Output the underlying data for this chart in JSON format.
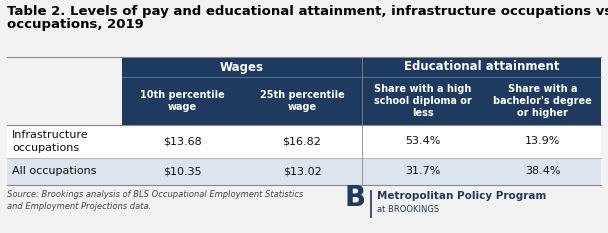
{
  "title_line1": "Table 2. Levels of pay and educational attainment, infrastructure occupations vs. all",
  "title_line2": "occupations, 2019",
  "title_fontsize": 9.5,
  "bg_color": "#f2f2f2",
  "header_bg": "#1e3a5f",
  "header_text_color": "#ffffff",
  "subheader_divider_color": "#4a6fa5",
  "row1_bg": "#ffffff",
  "row2_bg": "#dce4f0",
  "data_text_color": "#111111",
  "line_color": "#999999",
  "col_headers": [
    "10th percentile\nwage",
    "25th percentile\nwage",
    "Share with a high\nschool diploma or\nless",
    "Share with a\nbachelor's degree\nor higher"
  ],
  "group_labels": [
    "Wages",
    "Educational attainment"
  ],
  "row_labels": [
    "Infrastructure\noccupations",
    "All occupations"
  ],
  "data": [
    [
      "$13.68",
      "$16.82",
      "53.4%",
      "13.9%"
    ],
    [
      "$10.35",
      "$13.02",
      "31.7%",
      "38.4%"
    ]
  ],
  "source_text": "Source: Brookings analysis of BLS Occupational Employment Statistics\nand Employment Projections data.",
  "logo_b": "B",
  "logo_text1": "Metropolitan Policy Program",
  "logo_text2": "at BROOKINGS"
}
